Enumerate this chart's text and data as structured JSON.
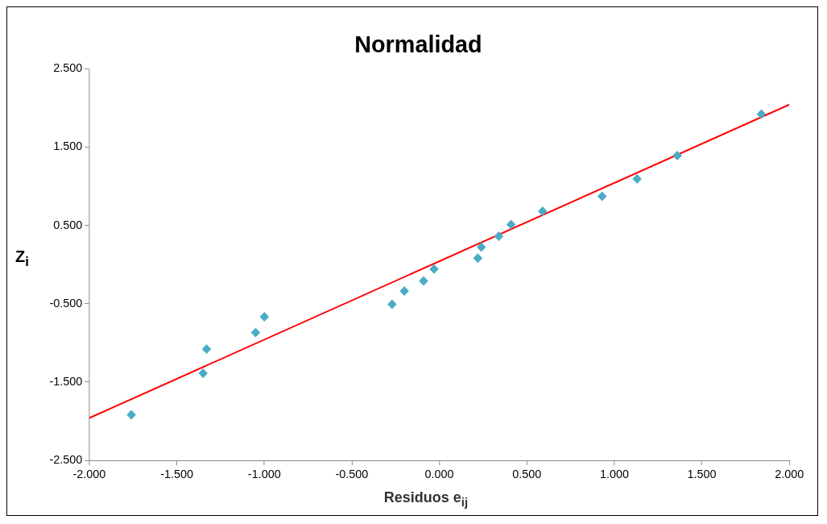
{
  "chart_data": {
    "type": "scatter",
    "title": "Normalidad",
    "xlabel": "Residuos e$_{ij}$",
    "ylabel": "Z$_{i}$",
    "xlim": [
      -2,
      2
    ],
    "ylim": [
      -2.5,
      2.5
    ],
    "xticks": [
      {
        "value": -2,
        "label": "-2.000"
      },
      {
        "value": -1.5,
        "label": "-1.500"
      },
      {
        "value": -1,
        "label": "-1.000"
      },
      {
        "value": -0.5,
        "label": "-0.500"
      },
      {
        "value": 0,
        "label": "0.000"
      },
      {
        "value": 0.5,
        "label": "0.500"
      },
      {
        "value": 1,
        "label": "1.000"
      },
      {
        "value": 1.5,
        "label": "1.500"
      },
      {
        "value": 2,
        "label": "2.000"
      }
    ],
    "yticks": [
      {
        "value": -2.5,
        "label": "-2.500"
      },
      {
        "value": -1.5,
        "label": "-1.500"
      },
      {
        "value": -0.5,
        "label": "-0.500"
      },
      {
        "value": 0.5,
        "label": "0.500"
      },
      {
        "value": 1.5,
        "label": "1.500"
      },
      {
        "value": 2.5,
        "label": "2.500"
      }
    ],
    "grid": false,
    "legend": false,
    "marker": "diamond",
    "series": [
      {
        "type": "scatter",
        "color": "#4bacc6",
        "x": [
          -1.76,
          -1.35,
          -1.33,
          -1.05,
          -1.0,
          -0.27,
          -0.2,
          -0.09,
          -0.03,
          0.22,
          0.24,
          0.34,
          0.41,
          0.59,
          0.93,
          1.13,
          1.36,
          1.84
        ],
        "values": [
          -1.92,
          -1.39,
          -1.08,
          -0.87,
          -0.67,
          -0.51,
          -0.34,
          -0.21,
          -0.06,
          0.08,
          0.22,
          0.36,
          0.51,
          0.68,
          0.87,
          1.09,
          1.39,
          1.92
        ]
      },
      {
        "type": "line",
        "color": "#ff0000",
        "marker": "none",
        "line_style": "solid",
        "x": [
          -2,
          2
        ],
        "values": [
          -1.96,
          2.04
        ]
      }
    ]
  }
}
